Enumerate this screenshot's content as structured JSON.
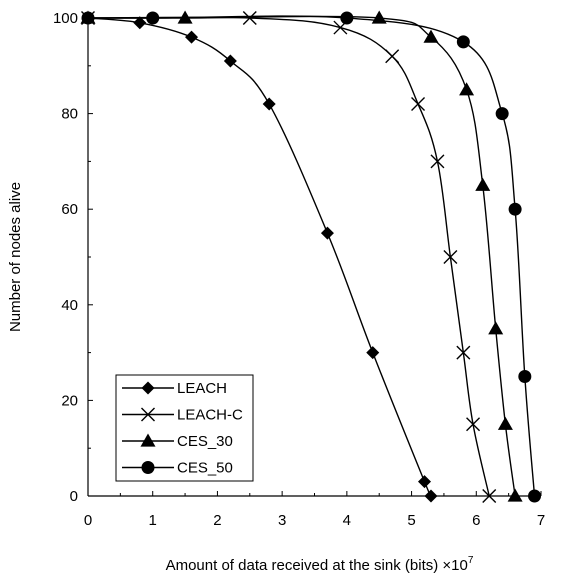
{
  "chart_data": {
    "type": "line",
    "xlabel": "Amount of data received at the sink (bits) ×10",
    "xlabel_exponent": "7",
    "ylabel": "Number of nodes alive",
    "xlim": [
      0,
      7
    ],
    "ylim": [
      0,
      100
    ],
    "xticks": [
      "0",
      "1",
      "2",
      "3",
      "4",
      "5",
      "6",
      "7"
    ],
    "yticks": [
      "0",
      "20",
      "40",
      "60",
      "80",
      "100"
    ],
    "grid": false,
    "legend_position": "bottom-left",
    "series": [
      {
        "name": "LEACH",
        "marker": "diamond",
        "points": [
          [
            0,
            100
          ],
          [
            0.8,
            99
          ],
          [
            1.6,
            96
          ],
          [
            2.2,
            91
          ],
          [
            2.8,
            82
          ],
          [
            3.7,
            55
          ],
          [
            4.4,
            30
          ],
          [
            5.2,
            3
          ],
          [
            5.3,
            0
          ]
        ]
      },
      {
        "name": "LEACH-C",
        "marker": "x",
        "points": [
          [
            0,
            100
          ],
          [
            2.5,
            100
          ],
          [
            3.9,
            98
          ],
          [
            4.7,
            92
          ],
          [
            5.1,
            82
          ],
          [
            5.4,
            70
          ],
          [
            5.6,
            50
          ],
          [
            5.8,
            30
          ],
          [
            5.95,
            15
          ],
          [
            6.2,
            0
          ]
        ]
      },
      {
        "name": "CES_30",
        "marker": "triangle",
        "points": [
          [
            0,
            100
          ],
          [
            1.5,
            100
          ],
          [
            4.5,
            100
          ],
          [
            5.3,
            96
          ],
          [
            5.85,
            85
          ],
          [
            6.1,
            65
          ],
          [
            6.3,
            35
          ],
          [
            6.45,
            15
          ],
          [
            6.6,
            0
          ]
        ]
      },
      {
        "name": "CES_50",
        "marker": "circle",
        "points": [
          [
            0,
            100
          ],
          [
            1,
            100
          ],
          [
            4,
            100
          ],
          [
            5.8,
            95
          ],
          [
            6.4,
            80
          ],
          [
            6.6,
            60
          ],
          [
            6.75,
            25
          ],
          [
            6.9,
            0
          ]
        ]
      }
    ]
  }
}
